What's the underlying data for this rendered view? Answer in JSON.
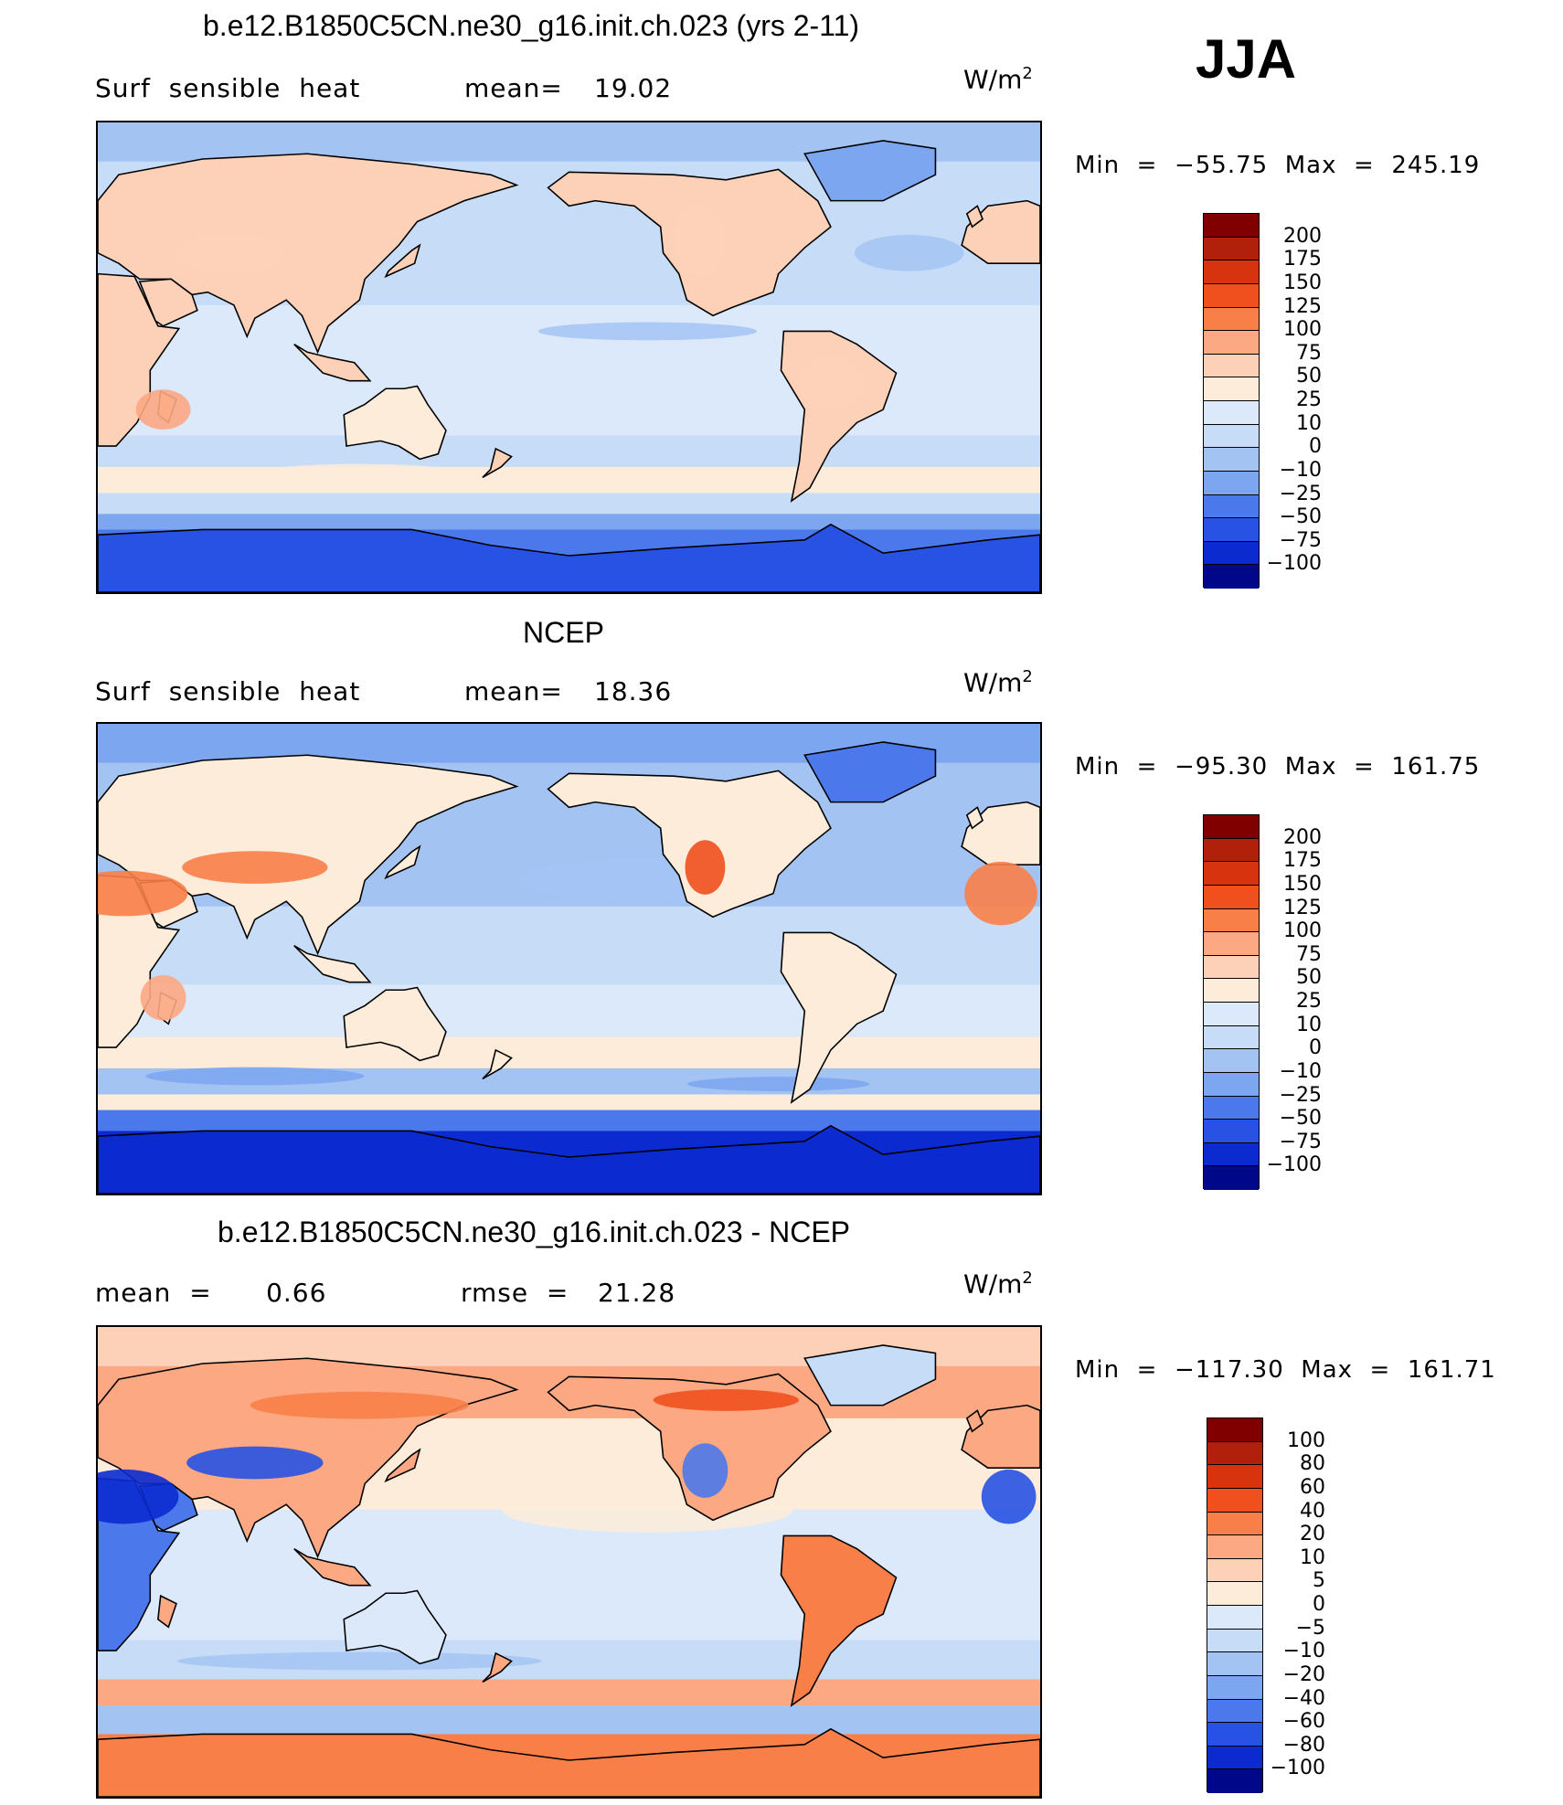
{
  "season": "JJA",
  "units_base": "W/m",
  "units_exp": "2",
  "panels": [
    {
      "title": "b.e12.B1850C5CN.ne30_g16.init.ch.023 (yrs 2-11)",
      "left_text": "Surf  sensible  heat",
      "stat_label": "mean=",
      "stat_value": "19.02",
      "minmax": "Min  =  −55.75  Max  =  245.19"
    },
    {
      "title": "NCEP",
      "left_text": "Surf  sensible  heat",
      "stat_label": "mean=",
      "stat_value": "18.36",
      "minmax": "Min  =  −95.30  Max  =  161.75"
    },
    {
      "title": "b.e12.B1850C5CN.ne30_g16.init.ch.023 - NCEP",
      "left_text": "mean  =      0.66",
      "stat_label": "rmse  =",
      "stat_value": "21.28",
      "minmax": "Min  =  −117.30  Max  =  161.71"
    }
  ],
  "chart_data": [
    {
      "type": "heatmap",
      "title": "b.e12.B1850C5CN.ne30_g16.init.ch.023 (yrs 2-11)",
      "variable": "Surf sensible heat",
      "units": "W/m2",
      "mean": 19.02,
      "min": -55.75,
      "max": 245.19,
      "colorbar_levels": [
        "200",
        "175",
        "150",
        "125",
        "100",
        "75",
        "50",
        "25",
        "10",
        "0",
        "−10",
        "−25",
        "−50",
        "−75",
        "−100"
      ]
    },
    {
      "type": "heatmap",
      "title": "NCEP",
      "variable": "Surf sensible heat",
      "units": "W/m2",
      "mean": 18.36,
      "min": -95.3,
      "max": 161.75,
      "colorbar_levels": [
        "200",
        "175",
        "150",
        "125",
        "100",
        "75",
        "50",
        "25",
        "10",
        "0",
        "−10",
        "−25",
        "−50",
        "−75",
        "−100"
      ]
    },
    {
      "type": "heatmap",
      "title": "b.e12.B1850C5CN.ne30_g16.init.ch.023 - NCEP",
      "units": "W/m2",
      "mean": 0.66,
      "rmse": 21.28,
      "min": -117.3,
      "max": 161.71,
      "colorbar_levels": [
        "100",
        "80",
        "60",
        "40",
        "20",
        "10",
        "5",
        "0",
        "−5",
        "−10",
        "−20",
        "−40",
        "−60",
        "−80",
        "−100"
      ]
    }
  ],
  "colors": {
    "abs_scale": [
      "#800000",
      "#b0200a",
      "#d8330f",
      "#f0501e",
      "#f88048",
      "#fca983",
      "#fdd1b8",
      "#fdecd9",
      "#dce9fa",
      "#c6dcf7",
      "#a3c4f3",
      "#7ca6f0",
      "#4b78ea",
      "#2752e3",
      "#0b2bd0",
      "#00088a"
    ],
    "diff_scale": [
      "#800000",
      "#b0200a",
      "#d8330f",
      "#f0501e",
      "#f88048",
      "#fca983",
      "#fdd1b8",
      "#fdecd9",
      "#dce9fa",
      "#c6dcf7",
      "#a3c4f3",
      "#7ca6f0",
      "#4b78ea",
      "#2752e3",
      "#0b2bd0",
      "#00088a"
    ]
  }
}
